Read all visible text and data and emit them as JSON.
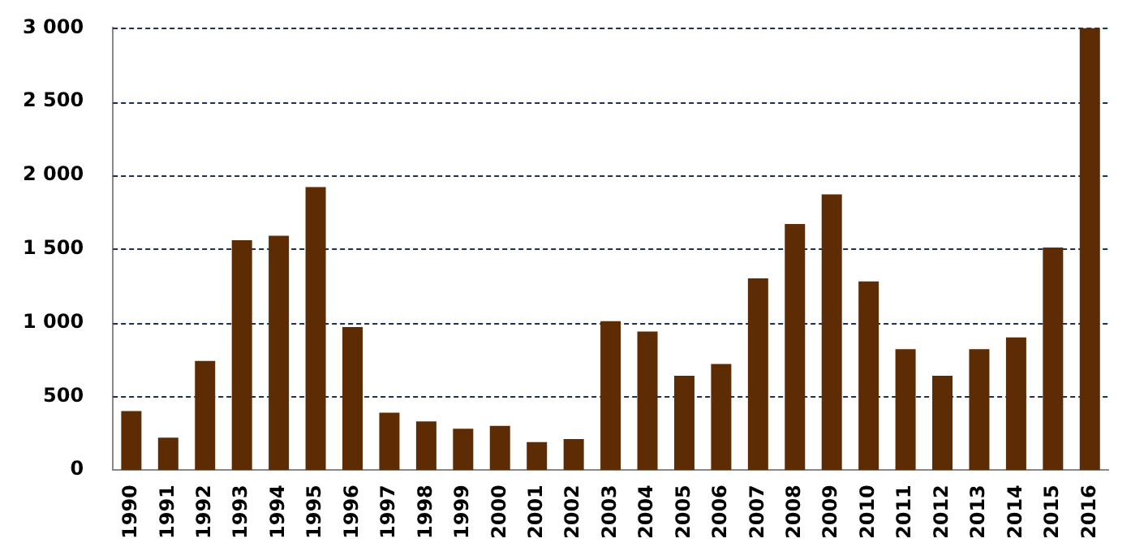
{
  "chart_data": {
    "type": "bar",
    "categories": [
      "1990",
      "1991",
      "1992",
      "1993",
      "1994",
      "1995",
      "1996",
      "1997",
      "1998",
      "1999",
      "2000",
      "2001",
      "2002",
      "2003",
      "2004",
      "2005",
      "2006",
      "2007",
      "2008",
      "2009",
      "2010",
      "2011",
      "2012",
      "2013",
      "2014",
      "2015",
      "2016"
    ],
    "values": [
      400,
      220,
      740,
      1560,
      1590,
      1920,
      970,
      390,
      330,
      280,
      300,
      190,
      210,
      1010,
      940,
      640,
      720,
      1300,
      1670,
      1870,
      1280,
      820,
      640,
      820,
      900,
      1510,
      3000
    ],
    "color": "#5e2c04",
    "ylim": [
      0,
      3000
    ],
    "yticks": [
      {
        "value": 0,
        "label": "0"
      },
      {
        "value": 500,
        "label": "500"
      },
      {
        "value": 1000,
        "label": "1 000"
      },
      {
        "value": 1500,
        "label": "1 500"
      },
      {
        "value": 2000,
        "label": "2 000"
      },
      {
        "value": 2500,
        "label": "2 500"
      },
      {
        "value": 3000,
        "label": "3 000"
      }
    ],
    "grid": "y"
  }
}
